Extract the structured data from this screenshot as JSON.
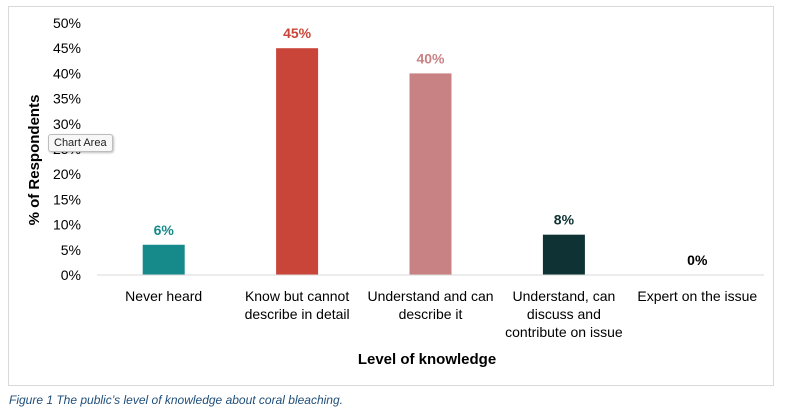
{
  "chart_data": {
    "type": "bar",
    "categories": [
      [
        "Never heard"
      ],
      [
        "Know but cannot",
        "describe in detail"
      ],
      [
        "Understand and can",
        "describe it"
      ],
      [
        "Understand, can",
        "discuss and",
        "contribute on issue"
      ],
      [
        "Expert on the issue"
      ]
    ],
    "values": [
      6,
      45,
      40,
      8,
      0
    ],
    "data_labels": [
      "6%",
      "45%",
      "40%",
      "8%",
      "0%"
    ],
    "colors": [
      "#168a8a",
      "#c9453a",
      "#c98284",
      "#0f3234",
      "#168a8a"
    ],
    "label_colors": [
      "#168a8a",
      "#c9453a",
      "#c98284",
      "#0f3234",
      "#000000"
    ],
    "ylabel": "% of Respondents",
    "xlabel": "Level of knowledge",
    "ylim": [
      0,
      50
    ],
    "yticks": [
      "0%",
      "5%",
      "10%",
      "15%",
      "20%",
      "25%",
      "30%",
      "35%",
      "40%",
      "45%",
      "50%"
    ],
    "grid": false
  },
  "tooltip": "Chart Area",
  "caption": "Figure 1 The public’s level of knowledge about coral bleaching."
}
